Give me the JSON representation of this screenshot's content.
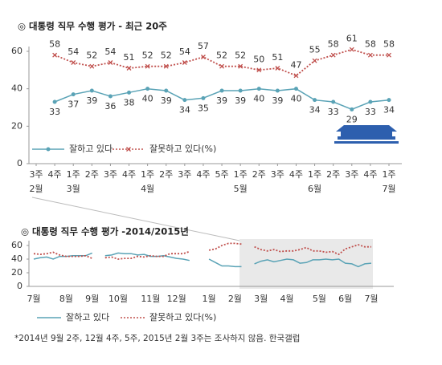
{
  "chart_data": [
    {
      "type": "line",
      "title": "◎ 대통령 직무 수행 평가 - 최근 20주",
      "categories": [
        "3주",
        "4주",
        "1주",
        "2주",
        "3주",
        "4주",
        "1주",
        "2주",
        "3주",
        "4주",
        "5주",
        "1주",
        "2주",
        "3주",
        "4주",
        "1주",
        "2주",
        "3주",
        "4주",
        "1주"
      ],
      "months": [
        "2월",
        null,
        "3월",
        null,
        null,
        null,
        "4월",
        null,
        null,
        null,
        null,
        "5월",
        null,
        null,
        null,
        "6월",
        null,
        null,
        null,
        "7월"
      ],
      "series": [
        {
          "name": "잘하고 있다",
          "color": "#5aa3b6",
          "line_style": "solid",
          "marker": "circle",
          "values": [
            null,
            33,
            37,
            39,
            36,
            38,
            40,
            39,
            34,
            35,
            39,
            39,
            40,
            39,
            40,
            34,
            33,
            29,
            33,
            34
          ]
        },
        {
          "name": "잘못하고 있다(%)",
          "color": "#c0504d",
          "line_style": "dotted",
          "marker": "x",
          "values": [
            null,
            58,
            54,
            52,
            54,
            51,
            52,
            52,
            54,
            57,
            52,
            52,
            50,
            51,
            47,
            55,
            58,
            61,
            58,
            58
          ]
        }
      ],
      "ylim": [
        0,
        60
      ],
      "yticks": [
        0,
        20,
        40,
        60
      ],
      "data_labels": true
    },
    {
      "type": "line",
      "title": "◎ 대통령 직무 수행 평가 -2014/2015년",
      "categories": [
        "7월",
        null,
        null,
        null,
        null,
        "8월",
        null,
        null,
        null,
        "9월",
        null,
        null,
        null,
        "10월",
        null,
        null,
        null,
        null,
        "11월",
        null,
        null,
        null,
        "12월",
        null,
        null,
        null,
        null,
        "1월",
        null,
        null,
        null,
        "2월",
        null,
        null,
        null,
        "3월",
        null,
        null,
        null,
        "4월",
        null,
        null,
        null,
        null,
        "5월",
        null,
        null,
        null,
        "6월",
        null,
        null,
        null,
        "7월"
      ],
      "series": [
        {
          "name": "잘하고 있다",
          "color": "#5aa3b6",
          "line_style": "solid",
          "marker": "none",
          "values": [
            40,
            42,
            43,
            40,
            44,
            44,
            45,
            45,
            45,
            49,
            null,
            45,
            46,
            49,
            48,
            48,
            46,
            47,
            44,
            44,
            45,
            43,
            41,
            40,
            38,
            null,
            null,
            40,
            35,
            30,
            30,
            29,
            29,
            null,
            33,
            37,
            39,
            36,
            38,
            40,
            39,
            34,
            35,
            39,
            39,
            40,
            39,
            40,
            34,
            33,
            29,
            33,
            34
          ]
        },
        {
          "name": "잘못하고 있다(%)",
          "color": "#c0504d",
          "line_style": "dotted",
          "marker": "none",
          "values": [
            48,
            47,
            48,
            50,
            46,
            44,
            44,
            44,
            45,
            41,
            null,
            42,
            43,
            40,
            41,
            41,
            44,
            43,
            45,
            44,
            44,
            48,
            48,
            48,
            51,
            null,
            null,
            53,
            55,
            60,
            63,
            63,
            62,
            null,
            58,
            54,
            52,
            54,
            51,
            52,
            52,
            54,
            57,
            52,
            52,
            50,
            51,
            47,
            55,
            58,
            61,
            58,
            58
          ]
        }
      ],
      "ylim": [
        0,
        60
      ],
      "yticks": [
        0,
        20,
        40,
        60
      ],
      "data_labels": false
    }
  ],
  "footnote": "*2014년 9월 2주, 12월 4주, 5주, 2015년 2월 3주는 조사하지 않음. 한국갤럽"
}
